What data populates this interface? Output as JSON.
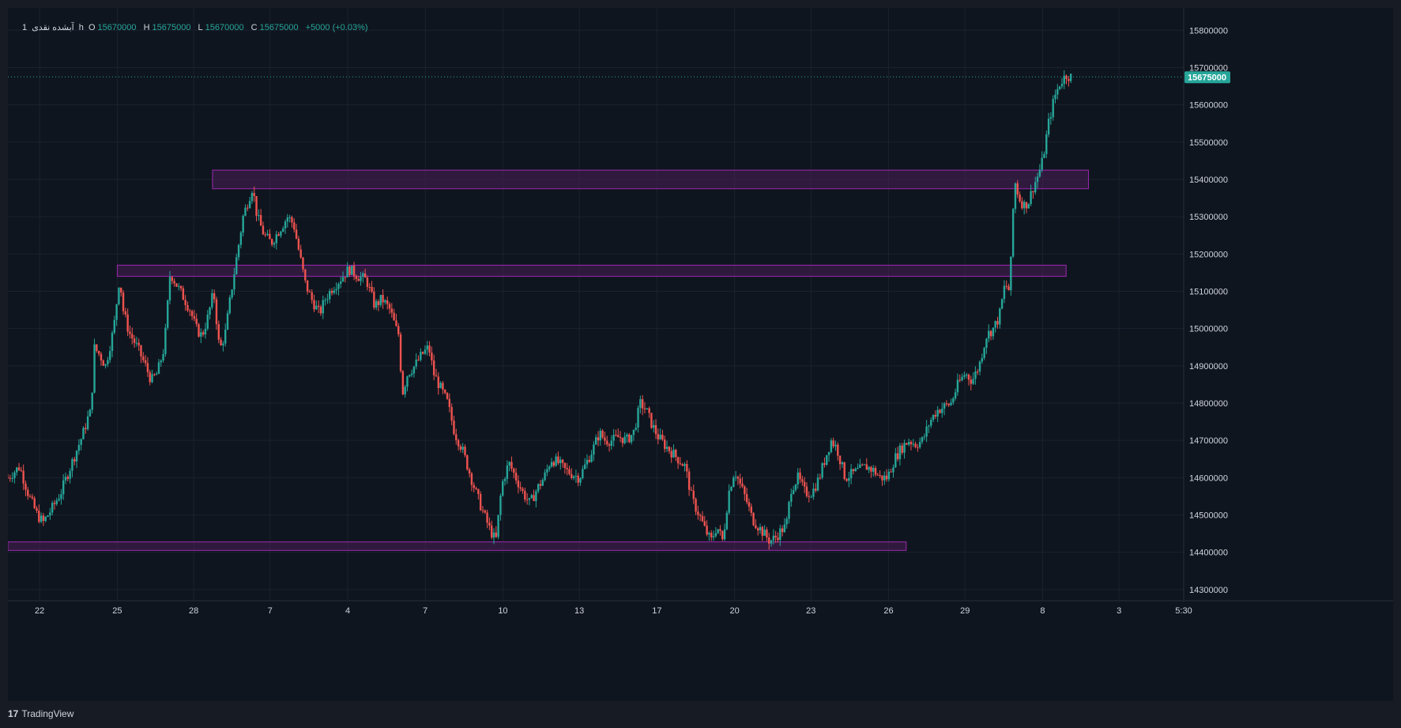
{
  "legend": {
    "interval": "1",
    "symbol": "آبشده نقدی",
    "timeframe": "h",
    "open_label": "O",
    "open": "15670000",
    "high_label": "H",
    "high": "15675000",
    "low_label": "L",
    "low": "15670000",
    "close_label": "C",
    "close": "15675000",
    "change": "+5000 (+0.03%)"
  },
  "footer": {
    "brand": "TradingView",
    "logo_glyph": "17"
  },
  "colors": {
    "background": "#0f151e",
    "up": "#26a69a",
    "down": "#ef5350",
    "zone_fill": "#4a1f5a",
    "zone_stroke": "#9c27b0",
    "text": "#d1d4dc"
  },
  "chart_data": {
    "type": "candlestick",
    "price_axis_ticks": [
      15800000,
      15700000,
      15600000,
      15500000,
      15400000,
      15300000,
      15200000,
      15100000,
      15000000,
      14900000,
      14800000,
      14700000,
      14600000,
      14500000,
      14400000,
      14300000
    ],
    "last_price_label": "15675000",
    "last_price": 15675000,
    "ylim": [
      14270000,
      15860000
    ],
    "x_tick_labels": [
      "22",
      "25",
      "28",
      "7",
      "4",
      "7",
      "10",
      "13",
      "17",
      "20",
      "23",
      "26",
      "29",
      "8",
      "3",
      "5:30"
    ],
    "x_tick_positions": [
      0.027,
      0.093,
      0.158,
      0.223,
      0.289,
      0.355,
      0.421,
      0.486,
      0.552,
      0.618,
      0.683,
      0.749,
      0.814,
      0.88,
      0.945,
      1.0
    ],
    "zones": [
      {
        "from": 0.174,
        "to": 0.919,
        "top": 15425000,
        "bottom": 15375000
      },
      {
        "from": 0.093,
        "to": 0.9,
        "top": 15170000,
        "bottom": 15140000
      },
      {
        "from": 0.0,
        "to": 0.764,
        "top": 14428000,
        "bottom": 14405000
      }
    ],
    "close_path": [
      [
        0.0,
        14600000
      ],
      [
        0.01,
        14630000
      ],
      [
        0.018,
        14550000
      ],
      [
        0.025,
        14500000
      ],
      [
        0.03,
        14480000
      ],
      [
        0.038,
        14520000
      ],
      [
        0.045,
        14560000
      ],
      [
        0.052,
        14620000
      ],
      [
        0.058,
        14670000
      ],
      [
        0.063,
        14710000
      ],
      [
        0.068,
        14760000
      ],
      [
        0.071,
        14780000
      ],
      [
        0.073,
        14950000
      ],
      [
        0.078,
        14930000
      ],
      [
        0.083,
        14900000
      ],
      [
        0.09,
        15000000
      ],
      [
        0.095,
        15140000
      ],
      [
        0.098,
        15050000
      ],
      [
        0.103,
        14990000
      ],
      [
        0.11,
        14950000
      ],
      [
        0.117,
        14900000
      ],
      [
        0.122,
        14860000
      ],
      [
        0.127,
        14880000
      ],
      [
        0.133,
        14950000
      ],
      [
        0.138,
        15150000
      ],
      [
        0.143,
        15120000
      ],
      [
        0.15,
        15080000
      ],
      [
        0.155,
        15050000
      ],
      [
        0.16,
        15000000
      ],
      [
        0.165,
        14980000
      ],
      [
        0.17,
        15030000
      ],
      [
        0.175,
        15100000
      ],
      [
        0.18,
        14940000
      ],
      [
        0.185,
        14990000
      ],
      [
        0.19,
        15100000
      ],
      [
        0.195,
        15200000
      ],
      [
        0.2,
        15300000
      ],
      [
        0.205,
        15350000
      ],
      [
        0.208,
        15380000
      ],
      [
        0.212,
        15300000
      ],
      [
        0.218,
        15250000
      ],
      [
        0.224,
        15230000
      ],
      [
        0.23,
        15260000
      ],
      [
        0.238,
        15300000
      ],
      [
        0.243,
        15280000
      ],
      [
        0.248,
        15200000
      ],
      [
        0.253,
        15120000
      ],
      [
        0.258,
        15080000
      ],
      [
        0.265,
        15040000
      ],
      [
        0.27,
        15080000
      ],
      [
        0.276,
        15110000
      ],
      [
        0.282,
        15130000
      ],
      [
        0.29,
        15160000
      ],
      [
        0.298,
        15140000
      ],
      [
        0.305,
        15130000
      ],
      [
        0.312,
        15060000
      ],
      [
        0.318,
        15080000
      ],
      [
        0.325,
        15050000
      ],
      [
        0.33,
        15000000
      ],
      [
        0.333,
        14980000
      ],
      [
        0.335,
        14820000
      ],
      [
        0.34,
        14880000
      ],
      [
        0.346,
        14900000
      ],
      [
        0.352,
        14930000
      ],
      [
        0.358,
        14950000
      ],
      [
        0.362,
        14880000
      ],
      [
        0.368,
        14840000
      ],
      [
        0.374,
        14800000
      ],
      [
        0.38,
        14720000
      ],
      [
        0.386,
        14680000
      ],
      [
        0.392,
        14620000
      ],
      [
        0.398,
        14560000
      ],
      [
        0.405,
        14500000
      ],
      [
        0.41,
        14460000
      ],
      [
        0.415,
        14430000
      ],
      [
        0.42,
        14580000
      ],
      [
        0.426,
        14640000
      ],
      [
        0.432,
        14600000
      ],
      [
        0.438,
        14560000
      ],
      [
        0.444,
        14530000
      ],
      [
        0.45,
        14570000
      ],
      [
        0.456,
        14600000
      ],
      [
        0.462,
        14650000
      ],
      [
        0.468,
        14640000
      ],
      [
        0.474,
        14620000
      ],
      [
        0.48,
        14610000
      ],
      [
        0.486,
        14600000
      ],
      [
        0.492,
        14640000
      ],
      [
        0.498,
        14680000
      ],
      [
        0.503,
        14720000
      ],
      [
        0.508,
        14700000
      ],
      [
        0.514,
        14700000
      ],
      [
        0.52,
        14710000
      ],
      [
        0.526,
        14700000
      ],
      [
        0.532,
        14720000
      ],
      [
        0.538,
        14800000
      ],
      [
        0.543,
        14780000
      ],
      [
        0.548,
        14740000
      ],
      [
        0.553,
        14710000
      ],
      [
        0.558,
        14690000
      ],
      [
        0.564,
        14670000
      ],
      [
        0.57,
        14650000
      ],
      [
        0.576,
        14630000
      ],
      [
        0.582,
        14540000
      ],
      [
        0.588,
        14500000
      ],
      [
        0.593,
        14460000
      ],
      [
        0.598,
        14430000
      ],
      [
        0.603,
        14470000
      ],
      [
        0.608,
        14430000
      ],
      [
        0.613,
        14560000
      ],
      [
        0.618,
        14620000
      ],
      [
        0.623,
        14580000
      ],
      [
        0.628,
        14540000
      ],
      [
        0.633,
        14490000
      ],
      [
        0.638,
        14470000
      ],
      [
        0.643,
        14450000
      ],
      [
        0.648,
        14430000
      ],
      [
        0.653,
        14440000
      ],
      [
        0.658,
        14460000
      ],
      [
        0.662,
        14470000
      ],
      [
        0.666,
        14570000
      ],
      [
        0.672,
        14600000
      ],
      [
        0.678,
        14560000
      ],
      [
        0.684,
        14560000
      ],
      [
        0.69,
        14600000
      ],
      [
        0.695,
        14650000
      ],
      [
        0.7,
        14700000
      ],
      [
        0.705,
        14680000
      ],
      [
        0.712,
        14600000
      ],
      [
        0.718,
        14610000
      ],
      [
        0.724,
        14620000
      ],
      [
        0.73,
        14630000
      ],
      [
        0.736,
        14620000
      ],
      [
        0.742,
        14600000
      ],
      [
        0.748,
        14600000
      ],
      [
        0.754,
        14650000
      ],
      [
        0.76,
        14680000
      ],
      [
        0.766,
        14700000
      ],
      [
        0.772,
        14690000
      ],
      [
        0.778,
        14700000
      ],
      [
        0.784,
        14750000
      ],
      [
        0.79,
        14780000
      ],
      [
        0.796,
        14790000
      ],
      [
        0.802,
        14800000
      ],
      [
        0.808,
        14850000
      ],
      [
        0.814,
        14880000
      ],
      [
        0.82,
        14860000
      ],
      [
        0.826,
        14900000
      ],
      [
        0.832,
        14980000
      ],
      [
        0.838,
        15000000
      ],
      [
        0.843,
        15030000
      ],
      [
        0.848,
        15120000
      ],
      [
        0.852,
        15100000
      ],
      [
        0.856,
        15400000
      ],
      [
        0.86,
        15350000
      ],
      [
        0.864,
        15330000
      ],
      [
        0.868,
        15340000
      ],
      [
        0.872,
        15380000
      ],
      [
        0.876,
        15410000
      ],
      [
        0.88,
        15450000
      ],
      [
        0.885,
        15550000
      ],
      [
        0.89,
        15620000
      ],
      [
        0.895,
        15660000
      ],
      [
        0.9,
        15680000
      ],
      [
        0.904,
        15675000
      ]
    ]
  }
}
